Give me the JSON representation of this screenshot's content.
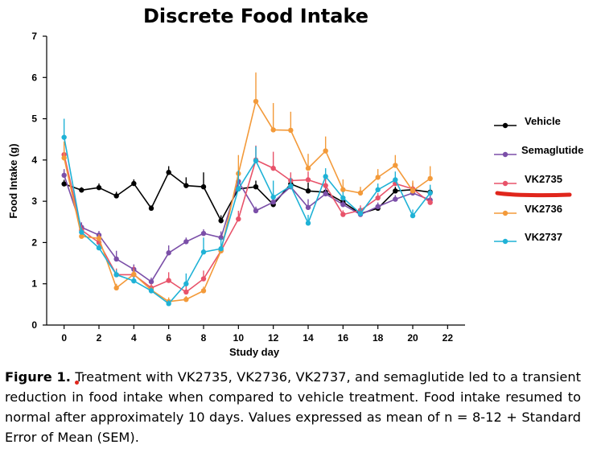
{
  "chart_data": {
    "type": "line",
    "title": "Discrete Food Intake",
    "xlabel": "Study day",
    "ylabel": "Food Intake (g)",
    "xlim": [
      -1,
      23
    ],
    "ylim": [
      0,
      7
    ],
    "xticks": [
      0,
      2,
      4,
      6,
      8,
      10,
      12,
      14,
      16,
      18,
      20,
      22
    ],
    "yticks": [
      0,
      1,
      2,
      3,
      4,
      5,
      6,
      7
    ],
    "x": [
      0,
      1,
      2,
      3,
      4,
      5,
      6,
      7,
      8,
      9,
      10,
      11,
      12,
      13,
      14,
      15,
      16,
      17,
      18,
      19,
      20,
      21
    ],
    "legend_position": "right",
    "series": [
      {
        "name": "Vehicle",
        "color": "#000000",
        "values": [
          3.42,
          3.27,
          3.33,
          3.13,
          3.43,
          2.83,
          3.7,
          3.38,
          3.35,
          2.53,
          3.3,
          3.35,
          2.92,
          3.42,
          3.25,
          3.22,
          2.98,
          2.7,
          2.83,
          3.25,
          3.28,
          3.22
        ],
        "errors": [
          0.1,
          0.07,
          0.1,
          0.1,
          0.1,
          0.07,
          0.15,
          0.2,
          0.35,
          0.13,
          0.12,
          0.15,
          0.1,
          0.15,
          0.2,
          0.18,
          0.1,
          0.1,
          0.08,
          0.1,
          0.1,
          0.1
        ]
      },
      {
        "name": "Semaglutide",
        "color": "#7b4fa8",
        "values": [
          3.63,
          2.37,
          2.18,
          1.6,
          1.35,
          1.05,
          1.75,
          2.02,
          2.22,
          2.12,
          3.48,
          2.77,
          2.98,
          3.35,
          2.85,
          3.18,
          2.92,
          2.68,
          2.87,
          3.05,
          3.2,
          3.03
        ],
        "errors": [
          0.15,
          0.12,
          0.1,
          0.2,
          0.12,
          0.1,
          0.18,
          0.1,
          0.1,
          0.15,
          0.2,
          0.1,
          0.15,
          0.15,
          0.2,
          0.15,
          0.1,
          0.08,
          0.1,
          0.1,
          0.1,
          0.12
        ]
      },
      {
        "name": "VK2735",
        "color": "#e8536a",
        "values": [
          4.13,
          2.3,
          2.0,
          1.22,
          1.22,
          0.9,
          1.08,
          0.8,
          1.12,
          1.8,
          2.57,
          4.0,
          3.8,
          3.5,
          3.52,
          3.38,
          2.68,
          2.78,
          3.08,
          3.43,
          3.3,
          2.97
        ],
        "errors": [
          0.25,
          0.12,
          0.1,
          0.15,
          0.2,
          0.1,
          0.2,
          0.15,
          0.2,
          0.15,
          0.2,
          0.35,
          0.4,
          0.2,
          0.2,
          0.2,
          0.1,
          0.12,
          0.12,
          0.12,
          0.15,
          0.12
        ]
      },
      {
        "name": "VK2736",
        "color": "#f39a3a",
        "values": [
          4.05,
          2.15,
          2.1,
          0.9,
          1.23,
          0.85,
          0.57,
          0.62,
          0.83,
          1.8,
          3.67,
          5.42,
          4.73,
          4.72,
          3.8,
          4.22,
          3.28,
          3.2,
          3.58,
          3.87,
          3.25,
          3.55
        ],
        "errors": [
          0.4,
          0.12,
          0.1,
          0.1,
          0.12,
          0.08,
          0.1,
          0.08,
          0.1,
          0.15,
          0.45,
          0.7,
          0.65,
          0.45,
          0.35,
          0.35,
          0.25,
          0.15,
          0.2,
          0.25,
          0.25,
          0.3
        ]
      },
      {
        "name": "VK2737",
        "color": "#1fb2d6",
        "values": [
          4.55,
          2.25,
          1.87,
          1.22,
          1.07,
          0.83,
          0.52,
          1.0,
          1.77,
          1.85,
          3.3,
          3.98,
          3.1,
          3.37,
          2.47,
          3.6,
          3.08,
          2.7,
          3.28,
          3.52,
          2.65,
          3.2
        ],
        "errors": [
          0.45,
          0.1,
          0.1,
          0.12,
          0.1,
          0.08,
          0.08,
          0.25,
          0.35,
          0.25,
          0.45,
          0.35,
          0.4,
          0.2,
          0.2,
          0.2,
          0.15,
          0.15,
          0.15,
          0.2,
          0.15,
          0.2
        ]
      }
    ]
  },
  "caption": {
    "label": "Figure 1.",
    "text": "Treatment with VK2735, VK2736, VK2737, and semaglutide led to a transient reduction in food intake when compared to vehicle treatment. Food intake resumed to normal after approximately 10 days. Values expressed as mean of n = 8-12 + Standard Error of Mean (SEM)."
  },
  "annotation": {
    "underline_target": "VK2735",
    "underline_color": "#e0261c",
    "dot_color": "#e0261c"
  }
}
